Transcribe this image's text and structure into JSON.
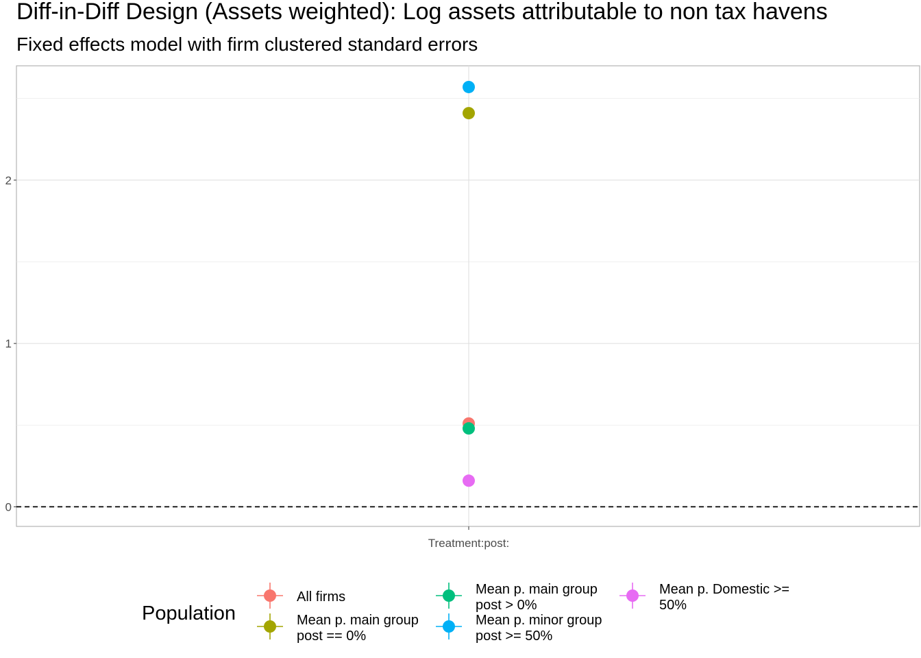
{
  "chart_data": {
    "type": "scatter",
    "title": "Diff-in-Diff Design (Assets weighted): Log assets attributable to non tax havens",
    "subtitle": "Fixed effects model with firm clustered standard errors",
    "xlabel": "",
    "ylabel": "",
    "categories": [
      "Treatment:post:"
    ],
    "ylim": [
      -0.12,
      2.7
    ],
    "yticks": [
      0,
      1,
      2
    ],
    "grid": true,
    "reference_line": {
      "y": 0,
      "style": "dashed"
    },
    "legend": {
      "title": "Population",
      "position": "bottom"
    },
    "series": [
      {
        "name": "All firms",
        "label_lines": [
          "All firms"
        ],
        "color": "#F8766D",
        "values": [
          0.51
        ]
      },
      {
        "name": "Mean p. main group post == 0%",
        "label_lines": [
          "Mean p. main group",
          "post == 0%"
        ],
        "color": "#A3A500",
        "values": [
          2.41
        ]
      },
      {
        "name": "Mean p. main group post > 0%",
        "label_lines": [
          "Mean p. main group",
          "post > 0%"
        ],
        "color": "#00BF7D",
        "values": [
          0.48
        ]
      },
      {
        "name": "Mean p. minor group post >= 50%",
        "label_lines": [
          "Mean p. minor group",
          "post >= 50%"
        ],
        "color": "#00B0F6",
        "values": [
          2.57
        ]
      },
      {
        "name": "Mean p. Domestic >= 50%",
        "label_lines": [
          "Mean p. Domestic >=",
          "50%"
        ],
        "color": "#E76BF3",
        "values": [
          0.16
        ]
      }
    ]
  }
}
